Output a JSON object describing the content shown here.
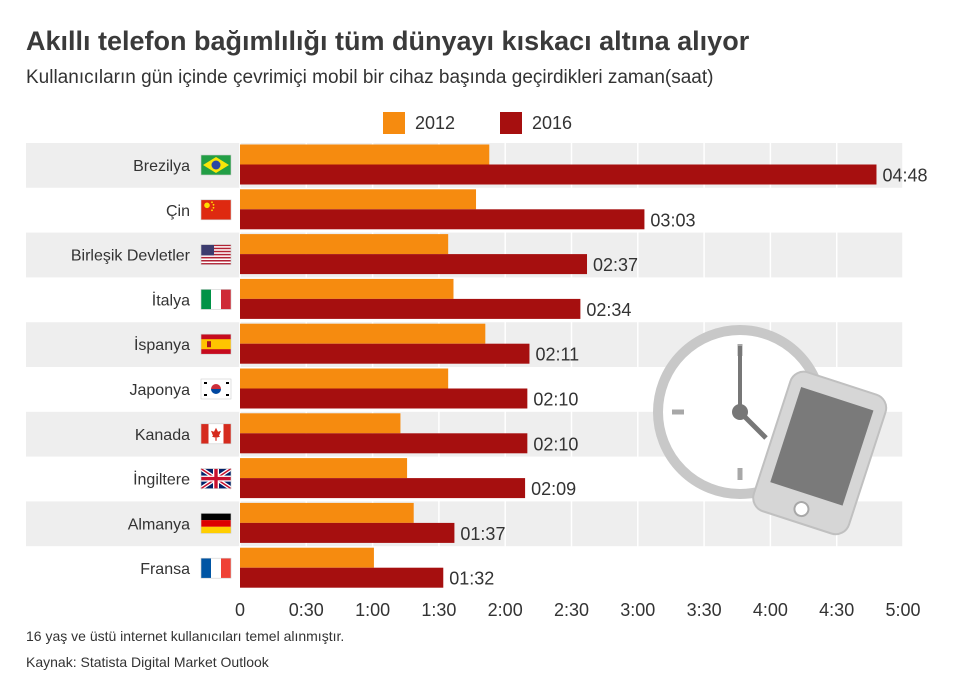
{
  "title": "Akıllı telefon bağımlılığı tüm dünyayı kıskacı altına alıyor",
  "subtitle": "Kullanıcıların gün içinde çevrimiçi mobil bir cihaz başında geçirdikleri zaman(saat)",
  "footnote": "16 yaş ve üstü internet kullanıcıları temel alınmıştır.",
  "source": "Kaynak: Statista Digital Market Outlook",
  "colors": {
    "s2012": "#f68b0f",
    "s2016": "#a60f0f",
    "band": "#eeeeee",
    "grid": "#ffffff"
  },
  "chart_data": {
    "type": "bar",
    "orientation": "horizontal",
    "unit": "saat",
    "categories": [
      "Brezilya",
      "Çin",
      "Birleşik Devletler",
      "İtalya",
      "İspanya",
      "Japonya",
      "Kanada",
      "İngiltere",
      "Almanya",
      "Fransa"
    ],
    "flags": [
      "brazil-flag-icon",
      "china-flag-icon",
      "usa-flag-icon",
      "italy-flag-icon",
      "spain-flag-icon",
      "korea-flag-icon",
      "canada-flag-icon",
      "uk-flag-icon",
      "germany-flag-icon",
      "france-flag-icon"
    ],
    "series": [
      {
        "name": "2012",
        "values": [
          1.88,
          1.78,
          1.57,
          1.61,
          1.85,
          1.57,
          1.21,
          1.26,
          1.31,
          1.01
        ]
      },
      {
        "name": "2016",
        "values": [
          4.8,
          3.05,
          2.617,
          2.567,
          2.183,
          2.167,
          2.167,
          2.15,
          1.617,
          1.533
        ],
        "labels": [
          "04:48",
          "03:03",
          "02:37",
          "02:34",
          "02:11",
          "02:10",
          "02:10",
          "02:09",
          "01:37",
          "01:32"
        ]
      }
    ],
    "xlim": [
      0,
      5
    ],
    "ticks": [
      0,
      0.5,
      1,
      1.5,
      2,
      2.5,
      3,
      3.5,
      4,
      4.5,
      5
    ],
    "tick_labels": [
      "0",
      "0:30",
      "1:00",
      "1:30",
      "2:00",
      "2:30",
      "3:00",
      "3:30",
      "4:00",
      "4:30",
      "5:00"
    ],
    "legend": "top-center",
    "grid": true
  }
}
